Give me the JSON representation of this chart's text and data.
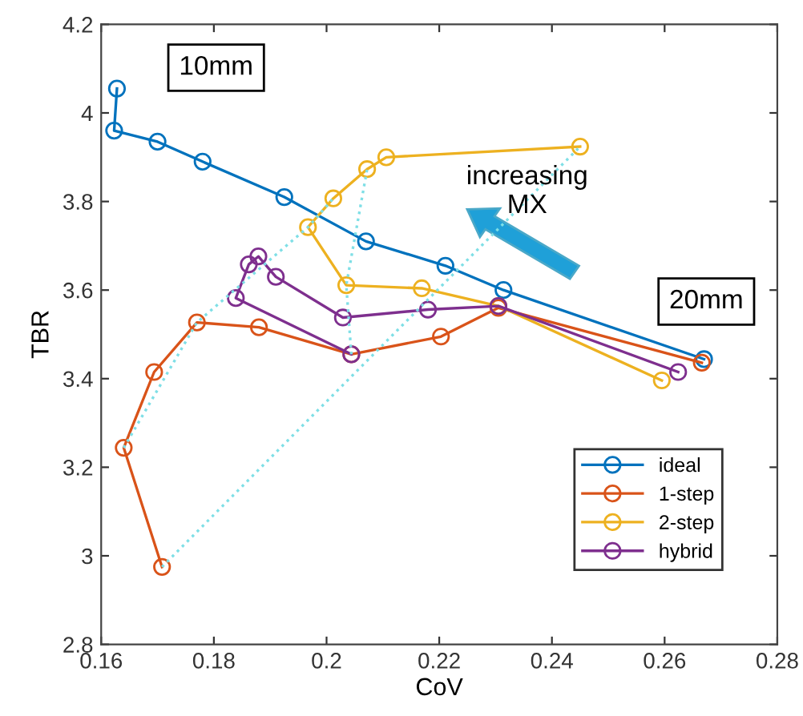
{
  "chart_data": {
    "type": "line",
    "xlabel": "CoV",
    "ylabel": "TBR",
    "xlim": [
      0.16,
      0.28
    ],
    "xticks": [
      0.16,
      0.18,
      0.2,
      0.22,
      0.24,
      0.26,
      0.28
    ],
    "ylim": [
      2.8,
      4.2
    ],
    "yticks": [
      2.8,
      3,
      3.2,
      3.4,
      3.6,
      3.8,
      4,
      4.2
    ],
    "grid": false,
    "legend": "bottom right",
    "marker": "circle",
    "line_style": "solid",
    "annotations": [
      "10mm",
      "20mm",
      "increasing MX"
    ],
    "series": [
      {
        "name": "ideal",
        "color": "#0072bd",
        "x": [
          0.1628,
          0.1623,
          0.17,
          0.178,
          0.1925,
          0.207,
          0.2211,
          0.2314,
          0.267
        ],
        "values": [
          4.055,
          3.96,
          3.935,
          3.89,
          3.81,
          3.71,
          3.655,
          3.6,
          3.444
        ]
      },
      {
        "name": "1-step",
        "color": "#d95319",
        "x": [
          0.1708,
          0.164,
          0.1694,
          0.177,
          0.188,
          0.2044,
          0.2203,
          0.2305,
          0.2666
        ],
        "values": [
          2.975,
          3.244,
          3.415,
          3.527,
          3.516,
          3.455,
          3.495,
          3.56,
          3.436
        ]
      },
      {
        "name": "2-step",
        "color": "#edb120",
        "x": [
          0.245,
          0.2106,
          0.2072,
          0.2012,
          0.1967,
          0.2035,
          0.2169,
          0.2305,
          0.2595
        ],
        "values": [
          3.924,
          3.9,
          3.873,
          3.807,
          3.742,
          3.611,
          3.604,
          3.564,
          3.396
        ]
      },
      {
        "name": "hybrid",
        "color": "#7e2f8e",
        "x": [
          0.2624,
          0.2305,
          0.218,
          0.2029,
          0.191,
          0.1879,
          0.1862,
          0.1839,
          0.2044
        ],
        "values": [
          3.415,
          3.564,
          3.556,
          3.538,
          3.63,
          3.676,
          3.658,
          3.582,
          3.455
        ]
      },
      {
        "color": "#7fdfe6",
        "line_style": "dotted",
        "marker": "none",
        "x": [
          0.164,
          0.177,
          0.1967,
          0.2012
        ],
        "values": [
          3.244,
          3.527,
          3.742,
          3.807
        ]
      },
      {
        "color": "#7fdfe6",
        "line_style": "dotted",
        "marker": "none",
        "x": [
          0.2044,
          0.2035,
          0.2072
        ],
        "values": [
          3.455,
          3.611,
          3.873
        ]
      },
      {
        "color": "#7fdfe6",
        "line_style": "dotted",
        "marker": "none",
        "x": [
          0.1708,
          0.245
        ],
        "values": [
          2.975,
          3.924
        ]
      }
    ]
  }
}
